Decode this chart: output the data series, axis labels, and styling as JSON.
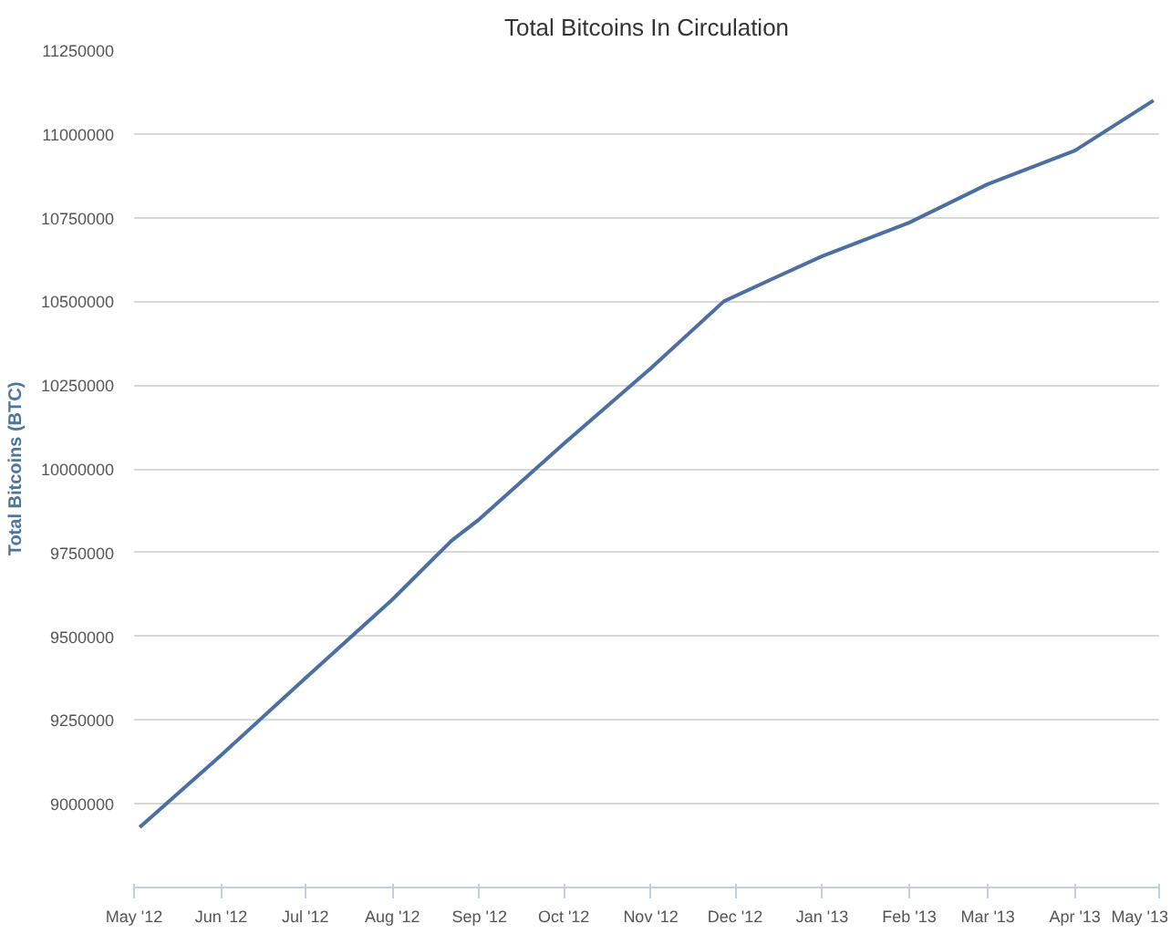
{
  "chart_data": {
    "type": "line",
    "title": "Total Bitcoins In Circulation",
    "ylabel": "Total Bitcoins (BTC)",
    "x": [
      "2012-05-03",
      "2012-06-01",
      "2012-07-01",
      "2012-08-01",
      "2012-08-22",
      "2012-09-01",
      "2012-10-01",
      "2012-11-01",
      "2012-11-27",
      "2012-12-15",
      "2013-01-01",
      "2013-02-01",
      "2013-03-01",
      "2013-04-01",
      "2013-04-29"
    ],
    "series": [
      {
        "color": "#4a6fa0",
        "values": [
          8930000,
          9145000,
          9375000,
          9610000,
          9785000,
          9850000,
          10075000,
          10300000,
          10500000,
          10570000,
          10635000,
          10735000,
          10850000,
          10950000,
          11100000
        ]
      }
    ],
    "xlim": [
      "2012-05-01",
      "2013-05-01"
    ],
    "xticks": [
      {
        "value": "2012-05-01",
        "label": "May '12"
      },
      {
        "value": "2012-06-01",
        "label": "Jun '12"
      },
      {
        "value": "2012-07-01",
        "label": "Jul '12"
      },
      {
        "value": "2012-08-01",
        "label": "Aug '12"
      },
      {
        "value": "2012-09-01",
        "label": "Sep '12"
      },
      {
        "value": "2012-10-01",
        "label": "Oct '12"
      },
      {
        "value": "2012-11-01",
        "label": "Nov '12"
      },
      {
        "value": "2012-12-01",
        "label": "Dec '12"
      },
      {
        "value": "2013-01-01",
        "label": "Jan '13"
      },
      {
        "value": "2013-02-01",
        "label": "Feb '13"
      },
      {
        "value": "2013-03-01",
        "label": "Mar '13"
      },
      {
        "value": "2013-04-01",
        "label": "Apr '13"
      },
      {
        "value": "2013-05-01",
        "label": "May '13"
      }
    ],
    "ylim": [
      8750000,
      11250000
    ],
    "yticks": [
      9000000,
      9250000,
      9500000,
      9750000,
      10000000,
      10250000,
      10500000,
      10750000,
      11000000,
      11250000
    ],
    "grid": "y",
    "marker": "none",
    "line_style": "solid"
  }
}
